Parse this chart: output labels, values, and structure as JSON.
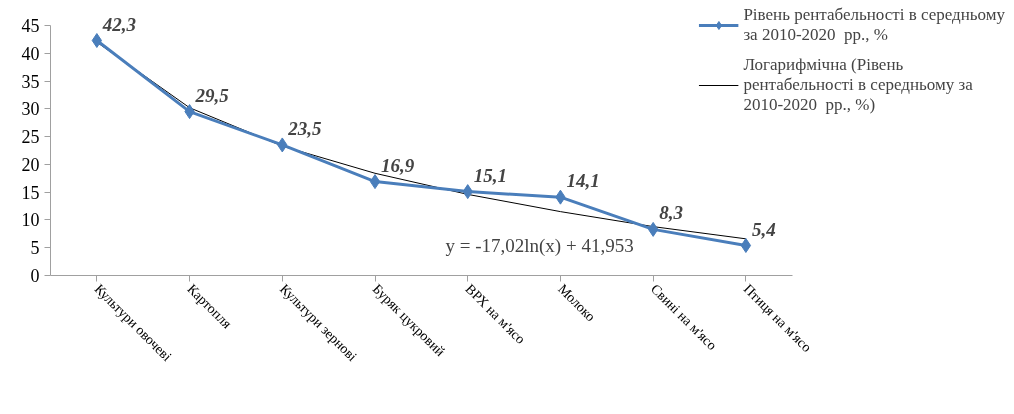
{
  "chart_data": {
    "type": "line",
    "categories": [
      "Культури овочеві",
      "Картопля",
      "Культури зернові",
      "Буряк цукровий",
      "ВРХ на м'ясо",
      "Молоко",
      "Свині на м'ясо",
      "Птиця на м'ясо"
    ],
    "series": [
      {
        "name": "Рівень рентабельності в середньому за 2010-2020  рр., %",
        "color": "#4a7ebb",
        "values": [
          42.3,
          29.5,
          23.5,
          16.9,
          15.1,
          14.1,
          8.3,
          5.4
        ],
        "marker": "diamond",
        "value_labels": [
          "42,3",
          "29,5",
          "23,5",
          "16,9",
          "15,1",
          "14,1",
          "8,3",
          "5,4"
        ]
      },
      {
        "name": "Логарифмічна (Рівень рентабельності в середньому за 2010-2020  рр., %)",
        "color": "#000000",
        "values": [
          42.0,
          30.2,
          23.3,
          18.4,
          14.6,
          11.5,
          8.8,
          6.6
        ],
        "marker": "none"
      }
    ],
    "ylim": [
      0,
      45
    ],
    "yticks": [
      0,
      5,
      10,
      15,
      20,
      25,
      30,
      35,
      40,
      45
    ],
    "annotations": [
      "y = -17,02ln(x)  + 41,953"
    ],
    "legend": "top right",
    "grid": false
  }
}
